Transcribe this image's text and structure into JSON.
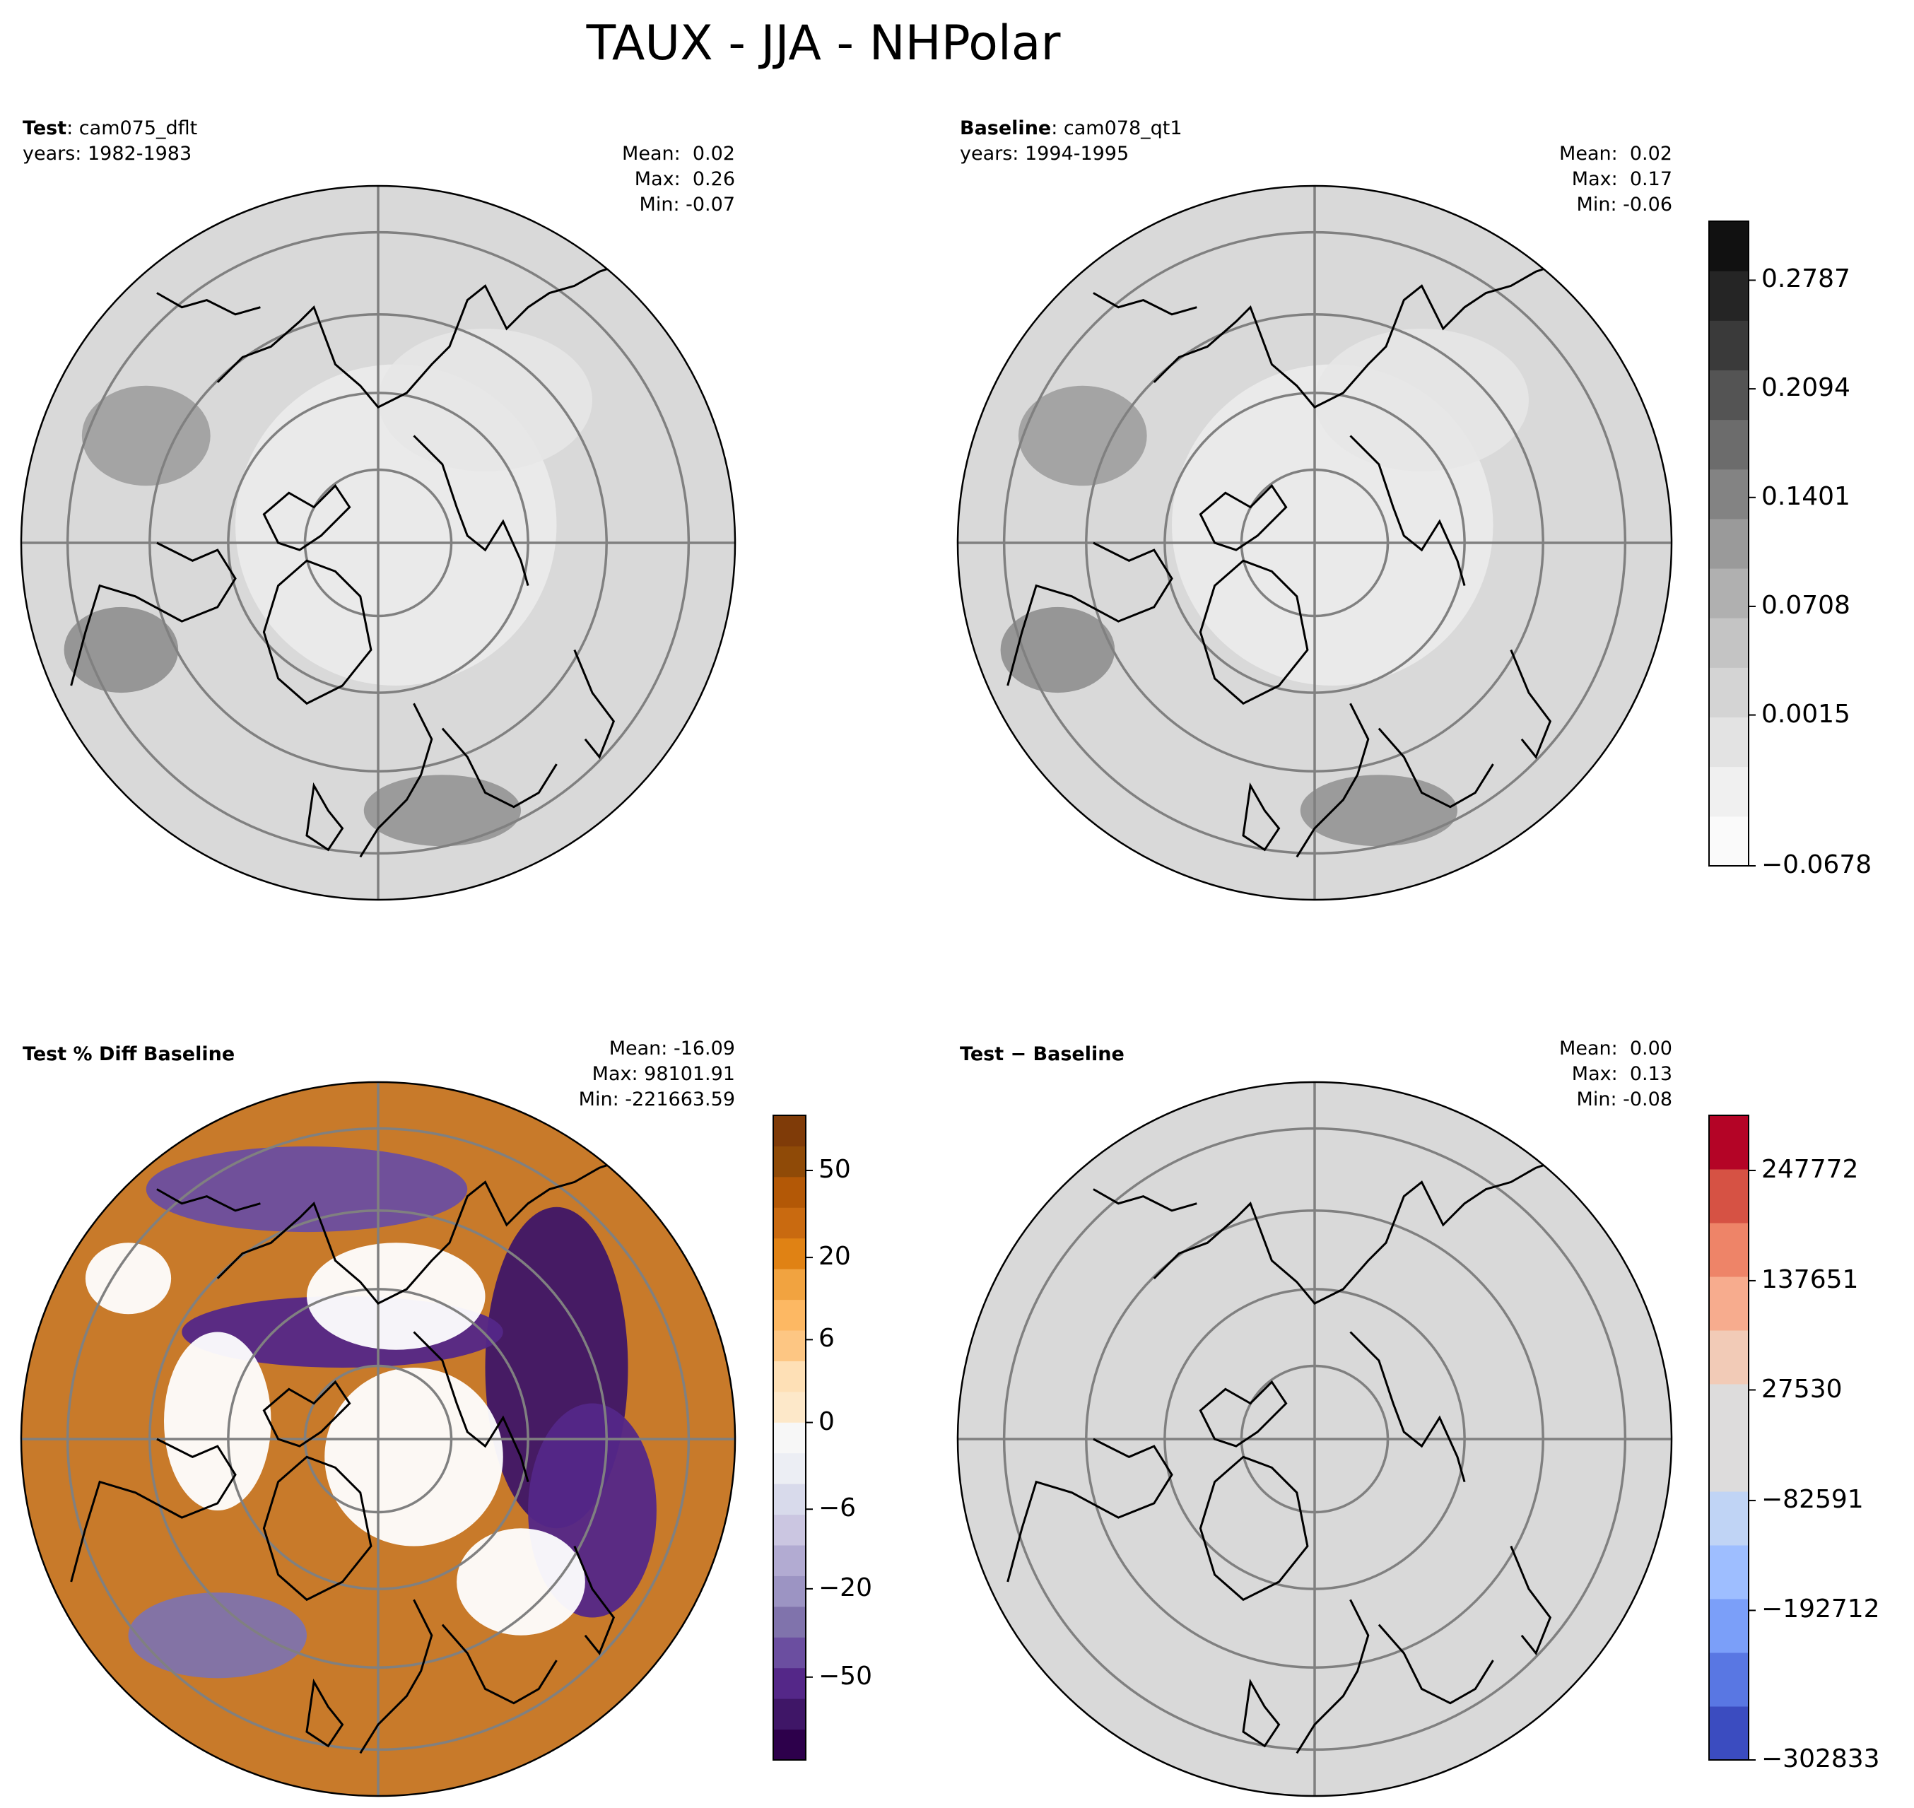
{
  "figure": {
    "title": "TAUX - JJA - NHPolar"
  },
  "panels": [
    {
      "id": "test",
      "label_bold": "Test",
      "label_rest": ": cam075_dflt",
      "years": "years: 1982-1983",
      "stats": {
        "mean": "Mean:  0.02",
        "max": "Max:  0.26",
        "min": "Min: -0.07"
      },
      "fill": "#d9d9d9"
    },
    {
      "id": "baseline",
      "label_bold": "Baseline",
      "label_rest": ": cam078_qt1",
      "years": "years: 1994-1995",
      "stats": {
        "mean": "Mean:  0.02",
        "max": "Max:  0.17",
        "min": "Min: -0.06"
      },
      "fill": "#d9d9d9"
    },
    {
      "id": "pctdiff",
      "label_bold": "Test % Diff Baseline",
      "label_rest": "",
      "years": "",
      "stats": {
        "mean": "Mean: -16.09",
        "max": "Max: 98101.91",
        "min": "Min: -221663.59"
      },
      "fill": "#c87a2a"
    },
    {
      "id": "diff",
      "label_bold": "Test",
      "label_rest": " − Baseline",
      "label_rest_bold": true,
      "years": "",
      "stats": {
        "mean": "Mean:  0.00",
        "max": "Max:  0.13",
        "min": "Min: -0.08"
      },
      "fill": "#d9d9d9"
    }
  ],
  "colorbars": [
    {
      "id": "gray",
      "range": [
        -0.0678,
        0.3
      ],
      "ticks": [
        "0.2787",
        "0.2094",
        "0.1401",
        "0.0708",
        "0.0015",
        "−0.0678"
      ],
      "colors": [
        "#fafafa",
        "#f0f0f0",
        "#e3e3e3",
        "#d4d4d4",
        "#c4c4c4",
        "#b0b0b0",
        "#9a9a9a",
        "#838383",
        "#6c6c6c",
        "#545454",
        "#3a3a3a",
        "#252525",
        "#111111"
      ]
    },
    {
      "id": "puor",
      "ticks": [
        "50",
        "20",
        "6",
        "0",
        "−6",
        "−20",
        "−50"
      ],
      "colors": [
        "#2d004b",
        "#3f1667",
        "#542788",
        "#6b4ea0",
        "#8073ac",
        "#9c94c3",
        "#b2abd2",
        "#cbc6e1",
        "#d8daeb",
        "#eceef4",
        "#f7f7f7",
        "#fde8c9",
        "#fee0b6",
        "#fdc683",
        "#fdb863",
        "#f1a340",
        "#e08214",
        "#c96a10",
        "#b35806",
        "#8f4a07",
        "#7f3b08"
      ]
    },
    {
      "id": "coolwarm",
      "ticks": [
        "247772",
        "137651",
        "27530",
        "−82591",
        "−192712",
        "−302833"
      ],
      "colors": [
        "#3b4cc0",
        "#5977e3",
        "#7b9ff9",
        "#9ebeff",
        "#c0d4f5",
        "#dddcdc",
        "#dddcdc",
        "#f2cbb7",
        "#f7ac8e",
        "#ee8468",
        "#d65244",
        "#b40426"
      ]
    }
  ]
}
